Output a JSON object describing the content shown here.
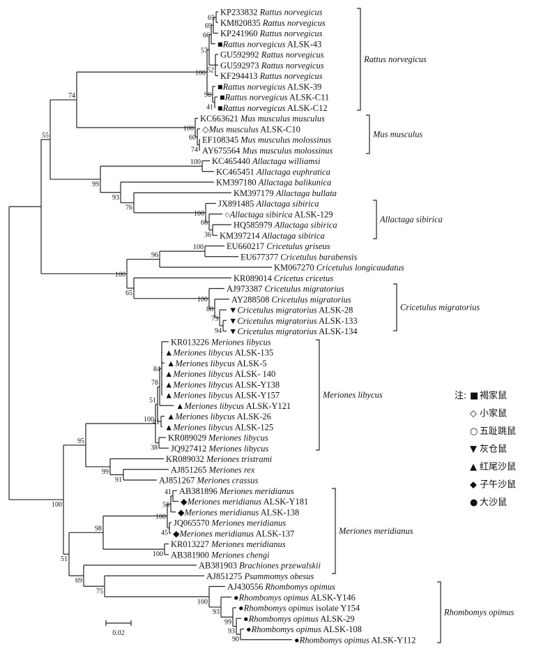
{
  "leaves": [
    {
      "acc": "KP233832",
      "species": "Rattus norvegicus",
      "isolate": "",
      "marker": ""
    },
    {
      "acc": "KM820835",
      "species": "Rattus norvegicus",
      "isolate": "",
      "marker": ""
    },
    {
      "acc": "KP241960",
      "species": "Rattus norvegicus",
      "isolate": "",
      "marker": ""
    },
    {
      "acc": "",
      "species": "Rattus norvegicus",
      "isolate": "ALSK-43",
      "marker": "■"
    },
    {
      "acc": "GU592992",
      "species": "Rattus norvegicus",
      "isolate": "",
      "marker": ""
    },
    {
      "acc": "GU592973",
      "species": "Rattus norvegicus",
      "isolate": "",
      "marker": ""
    },
    {
      "acc": "KF294413",
      "species": "Rattus norvegicus",
      "isolate": "",
      "marker": ""
    },
    {
      "acc": "",
      "species": "Rattus norvegicus",
      "isolate": "ALSK-39",
      "marker": "■"
    },
    {
      "acc": "",
      "species": "Rattus norvegicus",
      "isolate": "ALSK-C11",
      "marker": "■"
    },
    {
      "acc": "",
      "species": "Rattus norvegicus",
      "isolate": "ALSK-C12",
      "marker": "■"
    },
    {
      "acc": "KC663621",
      "species": "Mus musculus musculus",
      "isolate": "",
      "marker": ""
    },
    {
      "acc": "",
      "species": "Mus musculus",
      "isolate": "ALSK-C10",
      "marker": "◇"
    },
    {
      "acc": "EF108345",
      "species": "Mus musculus molossinus",
      "isolate": "",
      "marker": ""
    },
    {
      "acc": "AY675564",
      "species": "Mus musculus molossinus",
      "isolate": "",
      "marker": ""
    },
    {
      "acc": "KC465440",
      "species": "Allactaga williamsi",
      "isolate": "",
      "marker": ""
    },
    {
      "acc": "KC465451",
      "species": "Allactaga euphratica",
      "isolate": "",
      "marker": ""
    },
    {
      "acc": "KM397180",
      "species": "Allactaga balikunica",
      "isolate": "",
      "marker": ""
    },
    {
      "acc": "KM397179",
      "species": "Allactaga bullata",
      "isolate": "",
      "marker": ""
    },
    {
      "acc": "JX891485",
      "species": "Allactaga sibirica",
      "isolate": "",
      "marker": ""
    },
    {
      "acc": "",
      "species": "Allactaga sibirica",
      "isolate": "ALSK-129",
      "marker": "○"
    },
    {
      "acc": "HQ585979",
      "species": "Allactaga sibirica",
      "isolate": "",
      "marker": ""
    },
    {
      "acc": "KM397214",
      "species": "Allactaga sibirica",
      "isolate": "",
      "marker": ""
    },
    {
      "acc": "EU660217",
      "species": "Cricetulus griseus",
      "isolate": "",
      "marker": ""
    },
    {
      "acc": "EU677377",
      "species": "Cricetulus barabensis",
      "isolate": "",
      "marker": ""
    },
    {
      "acc": "KM067270",
      "species": "Cricetulus longicaudatus",
      "isolate": "",
      "marker": ""
    },
    {
      "acc": "KR089014",
      "species": "Cricetus cricetus",
      "isolate": "",
      "marker": ""
    },
    {
      "acc": "AJ973387",
      "species": "Cricetulus migratorius",
      "isolate": "",
      "marker": ""
    },
    {
      "acc": "AY288508",
      "species": "Cricetulus migratorius",
      "isolate": "",
      "marker": ""
    },
    {
      "acc": "",
      "species": "Cricetulus migratorius",
      "isolate": "ALSK-28",
      "marker": "▼"
    },
    {
      "acc": "",
      "species": "Cricetulus migratorius",
      "isolate": "ALSK-133",
      "marker": "▼"
    },
    {
      "acc": "",
      "species": "Cricetulus migratorius",
      "isolate": "ALSK-134",
      "marker": "▼"
    },
    {
      "acc": "KR013226",
      "species": "Meriones libycus",
      "isolate": "",
      "marker": ""
    },
    {
      "acc": "",
      "species": "Meriones libycus",
      "isolate": "ALSK-135",
      "marker": "▲"
    },
    {
      "acc": "",
      "species": "Meriones libycus",
      "isolate": "ALSK-5",
      "marker": "▲"
    },
    {
      "acc": "",
      "species": "Meriones libycus",
      "isolate": "ALSK- 140",
      "marker": "▲"
    },
    {
      "acc": "",
      "species": "Meriones libycus",
      "isolate": "ALSK-Y138",
      "marker": "▲"
    },
    {
      "acc": "",
      "species": "Meriones libycus",
      "isolate": "ALSK-Y157",
      "marker": "▲"
    },
    {
      "acc": "",
      "species": "Meriones libycus",
      "isolate": "ALSK-Y121",
      "marker": "▲"
    },
    {
      "acc": "",
      "species": "Meriones libycus",
      "isolate": "ALSK-26",
      "marker": "▲"
    },
    {
      "acc": "",
      "species": "Meriones libycus",
      "isolate": "ALSK-125",
      "marker": "▲"
    },
    {
      "acc": "KR089029",
      "species": "Meriones libycus",
      "isolate": "",
      "marker": ""
    },
    {
      "acc": "JQ927412",
      "species": "Meriones libycus",
      "isolate": "",
      "marker": ""
    },
    {
      "acc": "KR089032",
      "species": "Meriones tristrami",
      "isolate": "",
      "marker": ""
    },
    {
      "acc": "AJ851265",
      "species": "Meriones rex",
      "isolate": "",
      "marker": ""
    },
    {
      "acc": "AJ851267",
      "species": "Meriones crassus",
      "isolate": "",
      "marker": ""
    },
    {
      "acc": "AB381896",
      "species": "Meriones meridianus",
      "isolate": "",
      "marker": ""
    },
    {
      "acc": "",
      "species": "Meriones meridianus",
      "isolate": "ALSK-Y181",
      "marker": "◆"
    },
    {
      "acc": "",
      "species": "Meriones meridianus",
      "isolate": "ALSK-138",
      "marker": "◆"
    },
    {
      "acc": "JQ065570",
      "species": "Meriones meridianus",
      "isolate": "",
      "marker": ""
    },
    {
      "acc": "",
      "species": "Meriones meridianus",
      "isolate": "ALSK-137",
      "marker": "◆"
    },
    {
      "acc": "KR013227",
      "species": "Meriones meridianus",
      "isolate": "",
      "marker": ""
    },
    {
      "acc": "AB381900",
      "species": "Meriones chengi",
      "isolate": "",
      "marker": ""
    },
    {
      "acc": "AB381903",
      "species": "Brachiones przewalskii",
      "isolate": "",
      "marker": ""
    },
    {
      "acc": "AJ851275",
      "species": "Psammomys obesus",
      "isolate": "",
      "marker": ""
    },
    {
      "acc": "AJ430556",
      "species": "Rhombomys opimus",
      "isolate": "",
      "marker": ""
    },
    {
      "acc": "",
      "species": "Rhombomys opimus",
      "isolate": "ALSK-Y146",
      "marker": "●"
    },
    {
      "acc": "",
      "species": "Rhombomys opimus",
      "isolate": "isolate Y154",
      "marker": "●"
    },
    {
      "acc": "",
      "species": "Rhombomys opimus",
      "isolate": "ALSK-29",
      "marker": "●"
    },
    {
      "acc": "",
      "species": "Rhombomys opimus",
      "isolate": "ALSK-108",
      "marker": "●"
    },
    {
      "acc": "",
      "species": "Rhombomys opimus",
      "isolate": "ALSK-Y112",
      "marker": "●"
    }
  ],
  "bootstrap": {
    "n55": "55",
    "n74": "74",
    "r100": "100",
    "r57": "57",
    "r66": "66",
    "r69": "69",
    "r65": "65",
    "r52": "52",
    "r96": "96",
    "r41": "41",
    "m100": "100",
    "m60": "60",
    "m74": "74",
    "a99": "99",
    "a100": "100",
    "a93": "93",
    "a76": "76",
    "as100": "100",
    "as66": "66",
    "as36": "36",
    "c100": "100",
    "c96": "96",
    "c100b": "100",
    "c65": "65",
    "cm100": "100",
    "cm80": "80",
    "cm73": "73",
    "cm94": "94",
    "l100": "100",
    "l95": "95",
    "ml100": "100",
    "ml51": "51",
    "ml78": "78",
    "ml84": "84",
    "ml41": "41",
    "ml38": "38",
    "l99": "99",
    "l91": "91",
    "l51": "51",
    "md98": "98",
    "md100": "100",
    "md56": "56",
    "md41": "41",
    "md45": "45",
    "md100b": "100",
    "p69": "69",
    "p75": "75",
    "rh100": "100",
    "rh93": "93",
    "rh99": "99",
    "rh93b": "93",
    "rh90": "90"
  },
  "clades": [
    {
      "label": "Rattus norvegicus"
    },
    {
      "label": "Mus musculus"
    },
    {
      "label": "Allactaga sibirica"
    },
    {
      "label": "Cricetulus migratorius"
    },
    {
      "label": "Meriones libycus"
    },
    {
      "label": "Meriones meridianus"
    },
    {
      "label": "Rhombomys opimus"
    }
  ],
  "scale_bar": {
    "label": "0.02"
  },
  "legend": {
    "title": "注:",
    "items": [
      {
        "symbol": "■",
        "label": "褐家鼠"
      },
      {
        "symbol": "◇",
        "label": "小家鼠"
      },
      {
        "symbol": "○",
        "label": "五趾跳鼠"
      },
      {
        "symbol": "▼",
        "label": "灰仓鼠"
      },
      {
        "symbol": "▲",
        "label": "红尾沙鼠"
      },
      {
        "symbol": "◆",
        "label": "子午沙鼠"
      },
      {
        "symbol": "●",
        "label": "大沙鼠"
      }
    ]
  }
}
